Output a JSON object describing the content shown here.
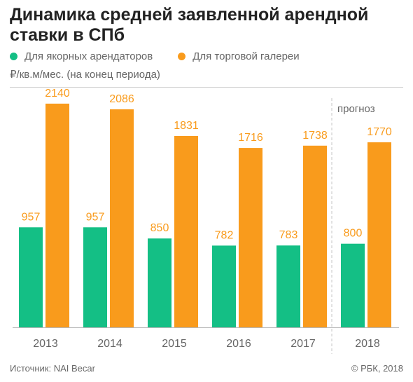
{
  "header": {
    "title": "Динамика средней заявленной арендной ставки в СПб"
  },
  "legend": {
    "items": [
      {
        "label": "Для якорных арендаторов",
        "color": "#14bf85"
      },
      {
        "label": "Для торговой галереи",
        "color": "#f99b1c"
      }
    ]
  },
  "unit_label": "₽/кв.м/мес. (на конец периода)",
  "forecast_label": "прогноз",
  "footer": {
    "source": "Источник: NAI Becar",
    "copyright": "© РБК, 2018"
  },
  "chart_data": {
    "type": "bar",
    "categories": [
      "2013",
      "2014",
      "2015",
      "2016",
      "2017",
      "2018"
    ],
    "series": [
      {
        "name": "Для якорных арендаторов",
        "color": "#14bf85",
        "values": [
          957,
          957,
          850,
          782,
          783,
          800
        ]
      },
      {
        "name": "Для торговой галереи",
        "color": "#f99b1c",
        "values": [
          2140,
          2086,
          1831,
          1716,
          1738,
          1770
        ]
      }
    ],
    "ylim": [
      0,
      2300
    ],
    "forecast_categories": [
      "2018"
    ],
    "grid": false,
    "legend_position": "top-left",
    "value_label_color": "#f99b1c"
  }
}
